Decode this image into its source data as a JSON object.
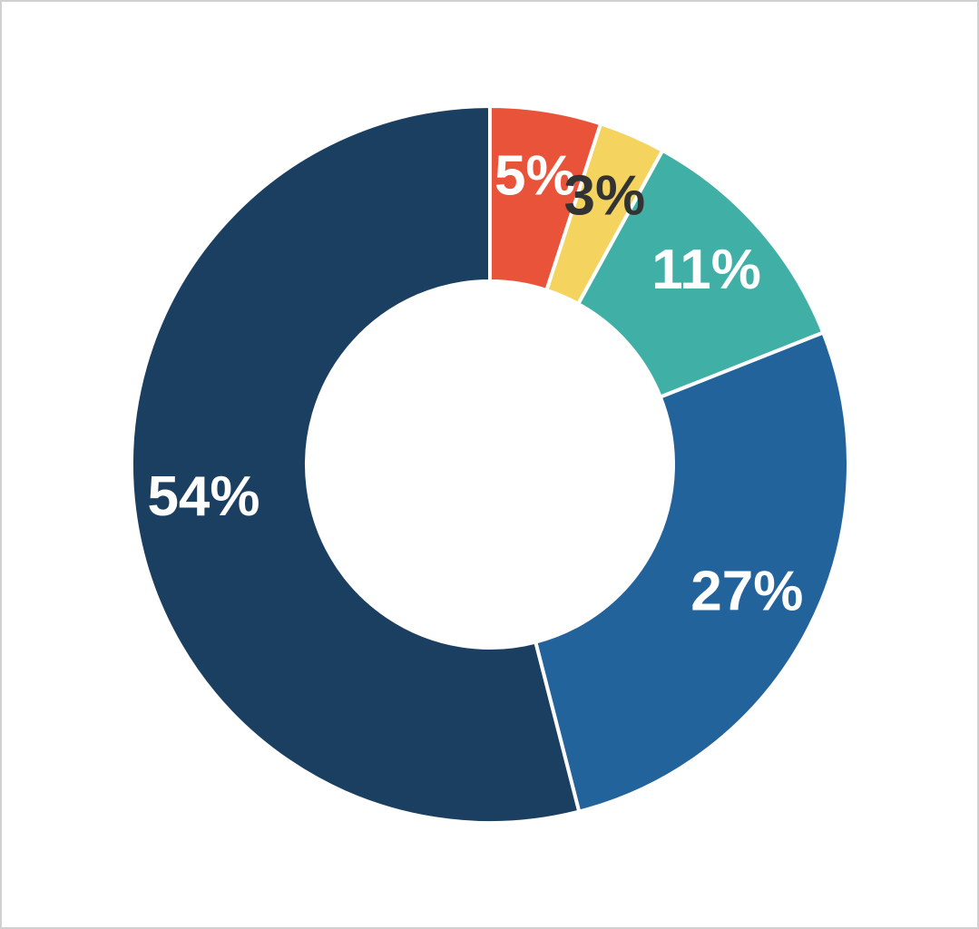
{
  "chart_data": {
    "type": "donut",
    "values": [
      5,
      3,
      11,
      27,
      54
    ],
    "value_labels": [
      "5%",
      "3%",
      "11%",
      "27%",
      "54%"
    ],
    "colors": [
      "#e8533a",
      "#f4d35e",
      "#40b0a6",
      "#22639b",
      "#1b3f61"
    ],
    "label_colors": [
      "#ffffff",
      "#333333",
      "#ffffff",
      "#ffffff",
      "#ffffff"
    ]
  }
}
